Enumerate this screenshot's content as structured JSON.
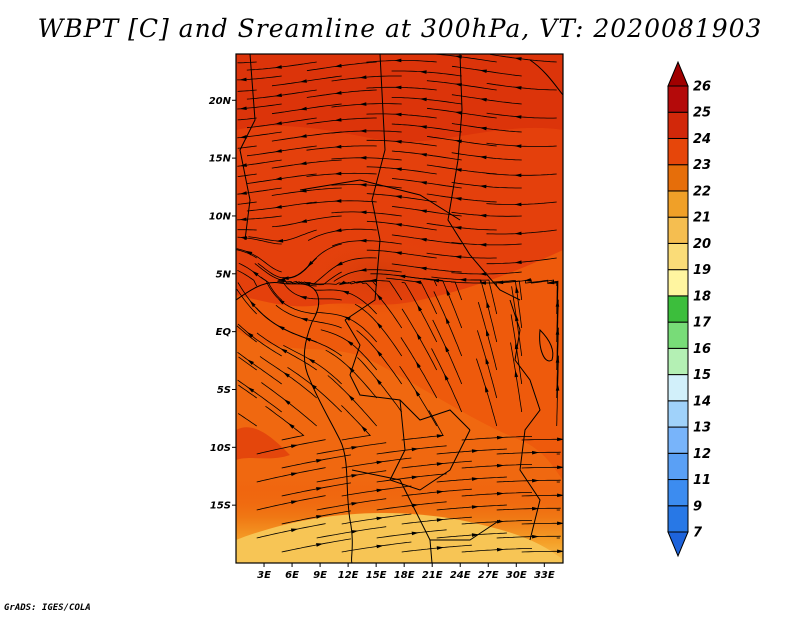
{
  "title": "WBPT [C] and Sreamline at 300hPa, VT: 2020081903",
  "credit": "GrADS: IGES/COLA",
  "map": {
    "lat_labels": [
      "20N",
      "15N",
      "10N",
      "5N",
      "EQ",
      "5S",
      "10S",
      "15S"
    ],
    "lon_labels": [
      "3E",
      "6E",
      "9E",
      "12E",
      "15E",
      "18E",
      "21E",
      "24E",
      "27E",
      "30E",
      "33E"
    ],
    "lat_range": [
      -20,
      24
    ],
    "lon_range": [
      0,
      35
    ]
  },
  "colorbar": {
    "labels": [
      "7",
      "9",
      "11",
      "12",
      "13",
      "14",
      "15",
      "16",
      "17",
      "18",
      "19",
      "20",
      "21",
      "22",
      "23",
      "24",
      "25",
      "26"
    ],
    "colors": [
      "#1e64dc",
      "#2878e6",
      "#3c8cf0",
      "#5aa0f5",
      "#78b4fa",
      "#a0d2fa",
      "#d2f0fa",
      "#b4f0b4",
      "#78dc78",
      "#3cbe3c",
      "#fff5a0",
      "#fadc78",
      "#f5be50",
      "#f0a028",
      "#e66e0a",
      "#e6460a",
      "#d2280a",
      "#b40a0a",
      "#a00000"
    ]
  }
}
